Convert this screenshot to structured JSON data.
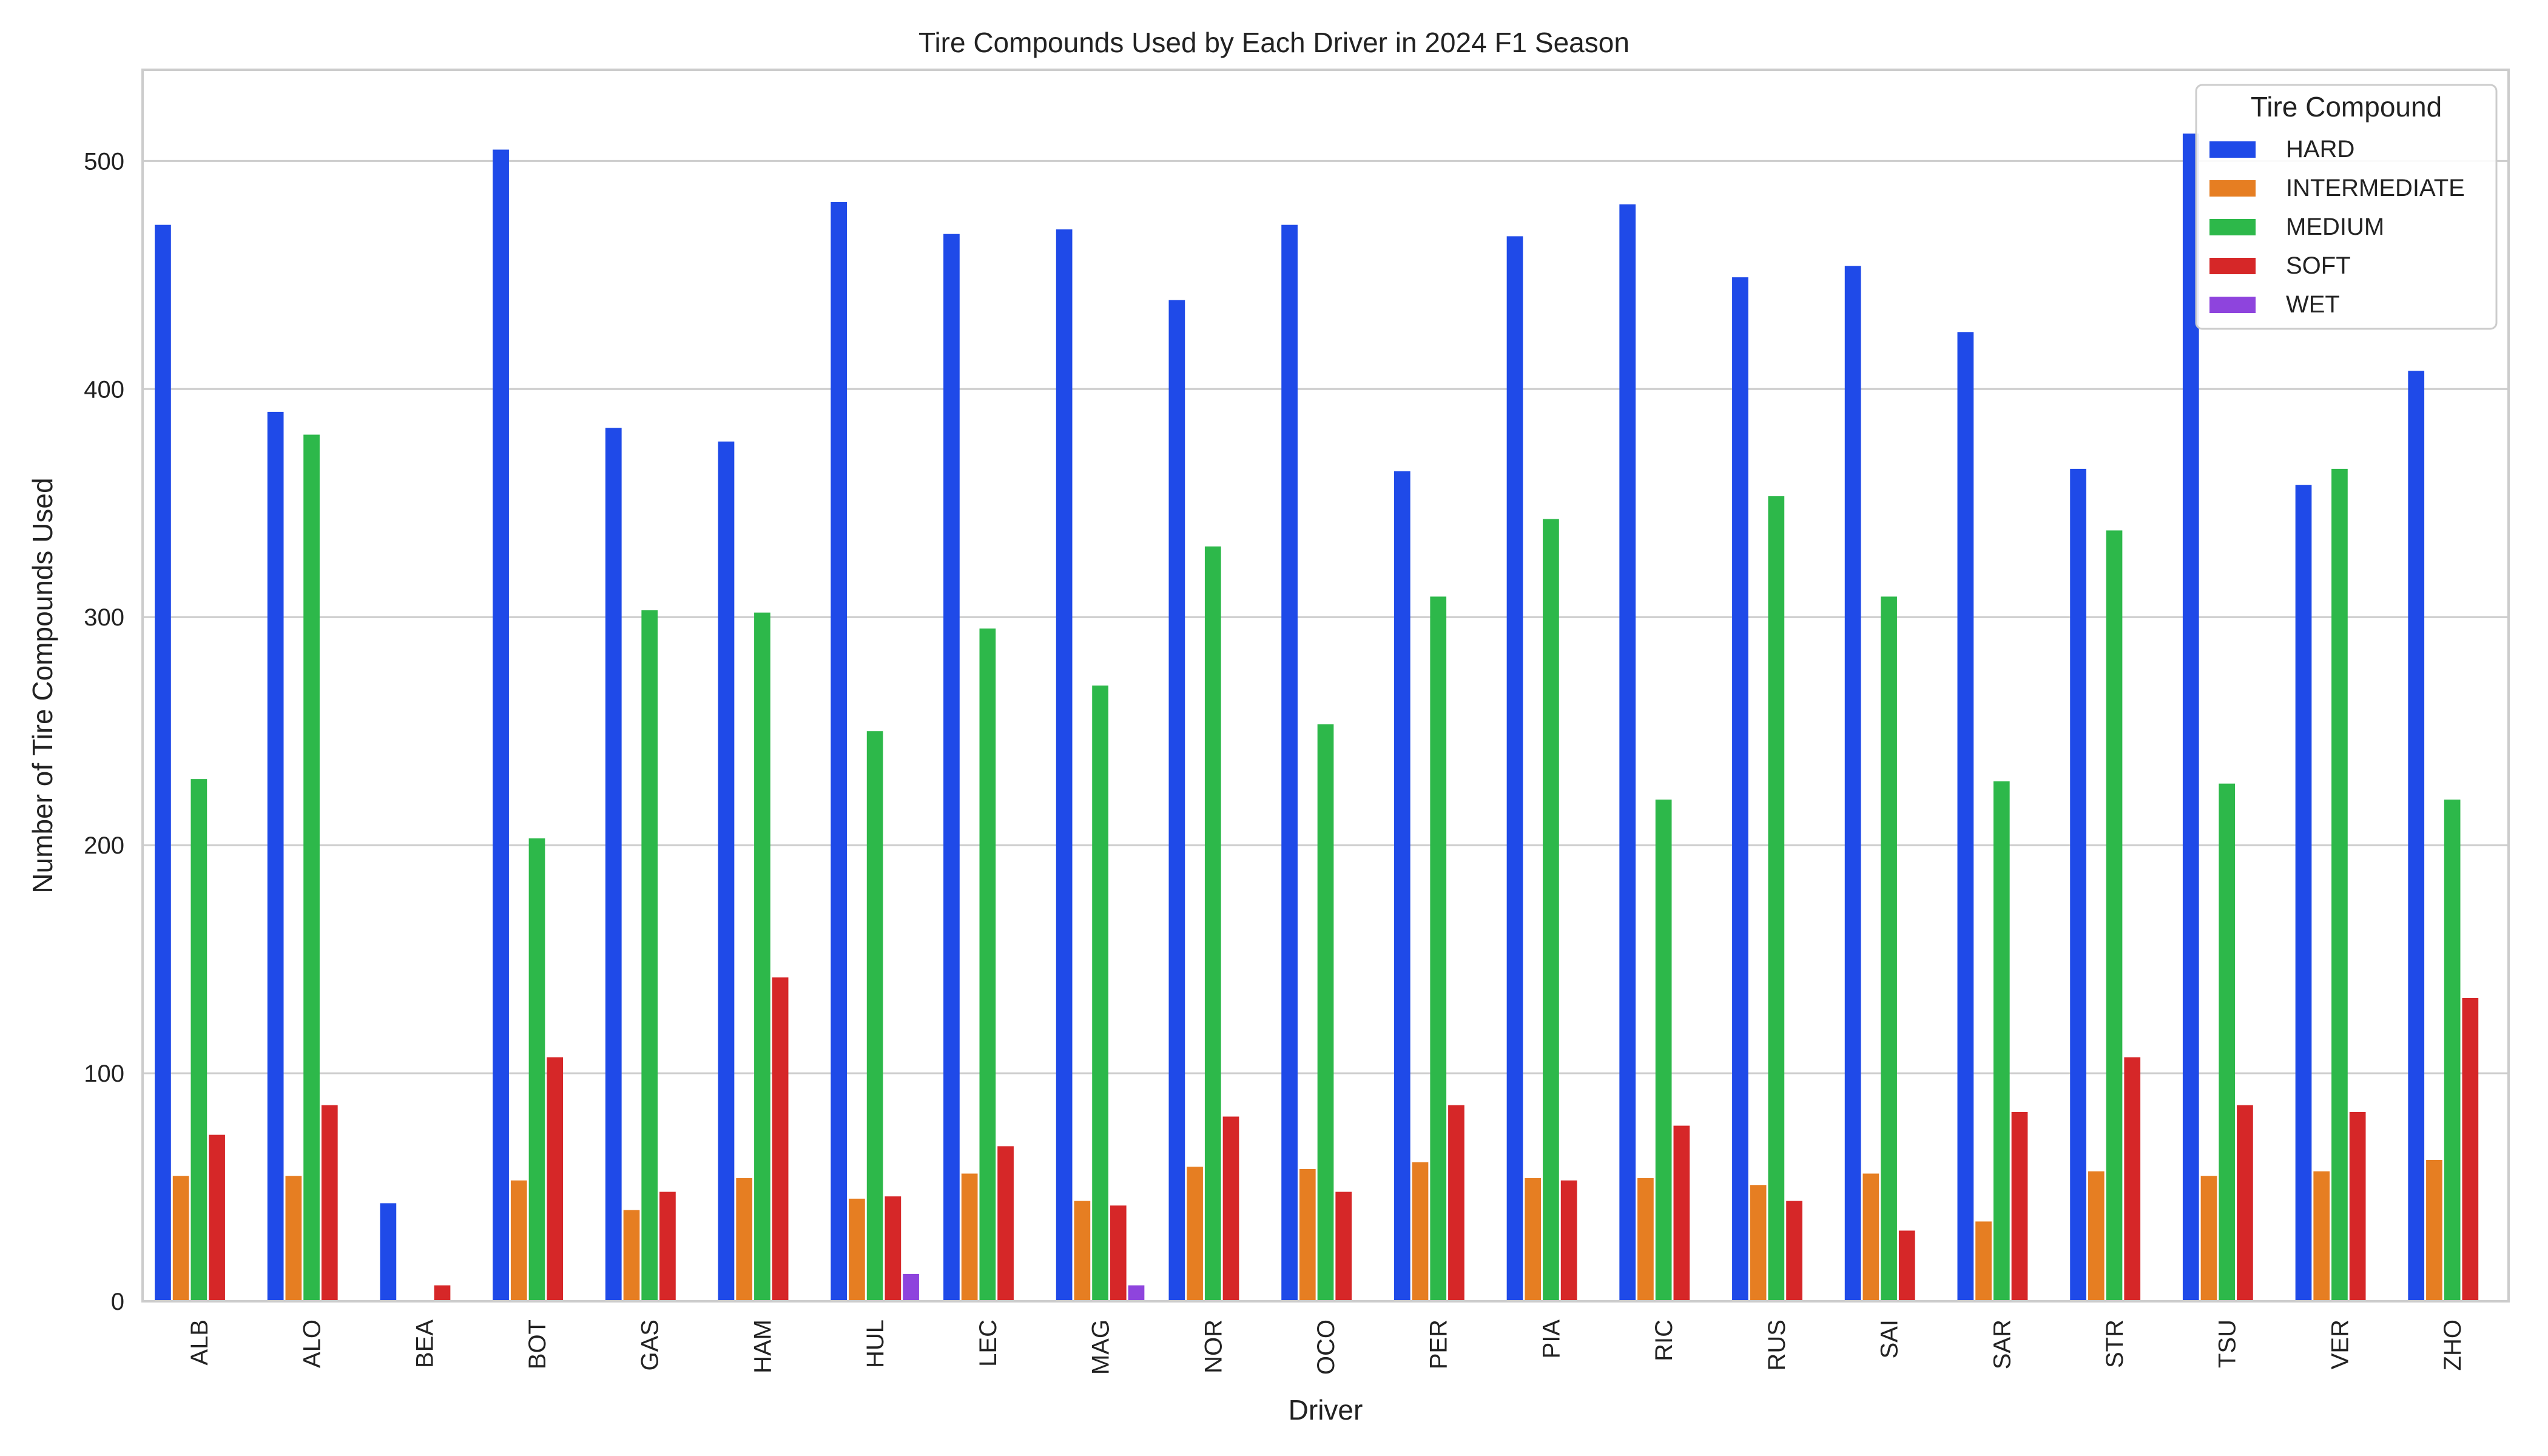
{
  "chart_data": {
    "type": "bar",
    "title": "Tire Compounds Used by Each Driver in 2024 F1 Season",
    "xlabel": "Driver",
    "ylabel": "Number of Tire Compounds Used",
    "ylim": [
      0,
      540
    ],
    "yticks": [
      0,
      100,
      200,
      300,
      400,
      500
    ],
    "grid": "horizontal",
    "legend": {
      "title": "Tire Compound",
      "placement": "top-right"
    },
    "categories": [
      "ALB",
      "ALO",
      "BEA",
      "BOT",
      "GAS",
      "HAM",
      "HUL",
      "LEC",
      "MAG",
      "NOR",
      "OCO",
      "PER",
      "PIA",
      "RIC",
      "RUS",
      "SAI",
      "SAR",
      "STR",
      "TSU",
      "VER",
      "ZHO"
    ],
    "series": [
      {
        "name": "HARD",
        "color": "#1f4ae8",
        "values": [
          472,
          390,
          43,
          505,
          383,
          377,
          482,
          468,
          470,
          439,
          472,
          364,
          467,
          481,
          449,
          454,
          425,
          365,
          512,
          358,
          408
        ]
      },
      {
        "name": "INTERMEDIATE",
        "color": "#e67e22",
        "values": [
          55,
          55,
          0,
          53,
          40,
          54,
          45,
          56,
          44,
          59,
          58,
          61,
          54,
          54,
          51,
          56,
          35,
          57,
          55,
          57,
          62
        ]
      },
      {
        "name": "MEDIUM",
        "color": "#2db84a",
        "values": [
          229,
          380,
          0,
          203,
          303,
          302,
          250,
          295,
          270,
          331,
          253,
          309,
          343,
          220,
          353,
          309,
          228,
          338,
          227,
          365,
          220
        ]
      },
      {
        "name": "SOFT",
        "color": "#d62728",
        "values": [
          73,
          86,
          7,
          107,
          48,
          142,
          46,
          68,
          42,
          81,
          48,
          86,
          53,
          77,
          44,
          31,
          83,
          107,
          86,
          83,
          133
        ]
      },
      {
        "name": "WET",
        "color": "#8e44dd",
        "values": [
          0,
          0,
          0,
          0,
          0,
          0,
          12,
          0,
          7,
          0,
          0,
          0,
          0,
          0,
          0,
          0,
          0,
          0,
          0,
          0,
          0
        ]
      }
    ]
  }
}
